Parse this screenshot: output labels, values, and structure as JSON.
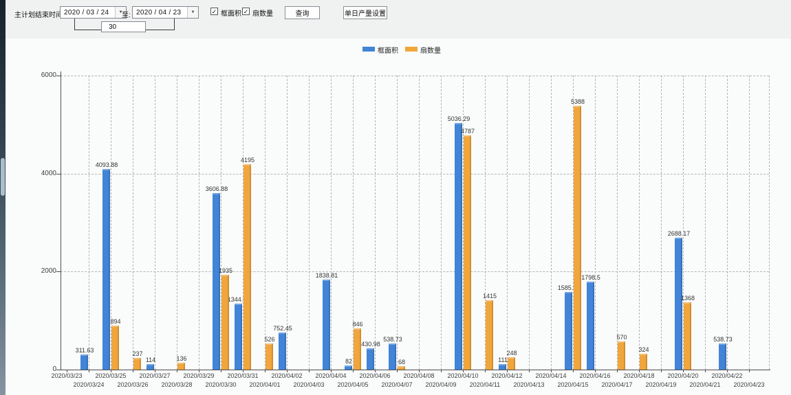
{
  "toolbar": {
    "label": "主计划结束时间:",
    "date_from": "2020 / 03 / 24",
    "to_label": "至:",
    "date_to": "2020 / 04 / 23",
    "days_value": "30",
    "checkbox1": "框面积",
    "checkbox2": "扇数量",
    "checkbox1_checked": "✓",
    "checkbox2_checked": "✓",
    "query_button": "查询",
    "daily_output_button": "单日产量设置",
    "combo_arrow": "▼"
  },
  "legend": [
    {
      "label": "框面积",
      "color": "#4184d8"
    },
    {
      "label": "扇数量",
      "color": "#f0a63c"
    }
  ],
  "chart_data": {
    "type": "bar",
    "title": "",
    "xlabel": "",
    "ylabel": "",
    "ylim": [
      0,
      6000
    ],
    "yticks": [
      0,
      2000,
      4000,
      6000
    ],
    "grid": "dashed",
    "legend_position": "top-center",
    "categories": [
      "2020/03/23",
      "2020/03/24",
      "2020/03/25",
      "2020/03/26",
      "2020/03/27",
      "2020/03/28",
      "2020/03/29",
      "2020/03/30",
      "2020/03/31",
      "2020/04/01",
      "2020/04/02",
      "2020/04/03",
      "2020/04/04",
      "2020/04/05",
      "2020/04/06",
      "2020/04/07",
      "2020/04/08",
      "2020/04/09",
      "2020/04/10",
      "2020/04/11",
      "2020/04/12",
      "2020/04/13",
      "2020/04/14",
      "2020/04/15",
      "2020/04/16",
      "2020/04/17",
      "2020/04/18",
      "2020/04/19",
      "2020/04/20",
      "2020/04/21",
      "2020/04/22",
      "2020/04/23"
    ],
    "series": [
      {
        "name": "框面积",
        "color": "#4184d8",
        "values": [
          null,
          311.63,
          4093.88,
          null,
          114,
          null,
          null,
          3606.88,
          1344.95,
          null,
          752.45,
          null,
          1838.81,
          82,
          430.98,
          538.73,
          null,
          null,
          5036.29,
          null,
          111,
          null,
          null,
          1585.96,
          1798.5,
          null,
          null,
          null,
          2688.17,
          null,
          538.73,
          null
        ]
      },
      {
        "name": "扇数量",
        "color": "#f0a63c",
        "values": [
          null,
          null,
          894,
          237,
          null,
          136,
          null,
          1935,
          4195,
          526,
          null,
          null,
          null,
          846,
          null,
          68,
          null,
          null,
          4787,
          1415,
          248,
          null,
          null,
          5388,
          null,
          570,
          324,
          null,
          1368,
          null,
          null,
          null
        ]
      }
    ]
  }
}
